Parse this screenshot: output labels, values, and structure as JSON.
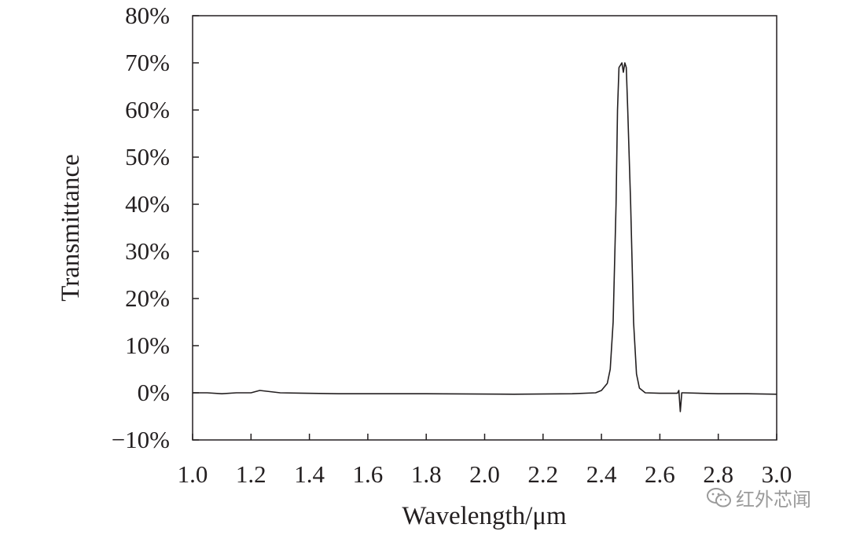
{
  "chart_data": {
    "type": "line",
    "xlabel": "Wavelength/μm",
    "ylabel": "Transmittance",
    "xlim": [
      1.0,
      3.0
    ],
    "ylim": [
      -10,
      80
    ],
    "x_ticks": [
      "1.0",
      "1.2",
      "1.4",
      "1.6",
      "1.8",
      "2.0",
      "2.2",
      "2.4",
      "2.6",
      "2.8",
      "3.0"
    ],
    "y_ticks": [
      "−10%",
      "0%",
      "10%",
      "20%",
      "30%",
      "40%",
      "50%",
      "60%",
      "70%",
      "80%"
    ],
    "grid": false,
    "legend": "none",
    "line_color": "#231f20",
    "series": [
      {
        "x": [
          1.0,
          1.05,
          1.1,
          1.15,
          1.2,
          1.23,
          1.3,
          1.5,
          1.8,
          2.1,
          2.3,
          2.38,
          2.4,
          2.42,
          2.43,
          2.44,
          2.45,
          2.455,
          2.46,
          2.47,
          2.475,
          2.48,
          2.485,
          2.49,
          2.5,
          2.51,
          2.52,
          2.53,
          2.55,
          2.6,
          2.66,
          2.665,
          2.67,
          2.675,
          2.68,
          2.8,
          2.9,
          3.0
        ],
        "y": [
          0.0,
          0.0,
          -0.2,
          0.0,
          0.0,
          0.5,
          0.0,
          -0.2,
          -0.2,
          -0.3,
          -0.2,
          0.0,
          0.5,
          2.0,
          5.0,
          15.0,
          40.0,
          60.0,
          69.0,
          70.0,
          68.0,
          70.0,
          69.0,
          60.0,
          40.0,
          15.0,
          4.0,
          1.0,
          0.0,
          -0.1,
          -0.1,
          0.5,
          -4.0,
          0.0,
          0.0,
          -0.2,
          -0.2,
          -0.3
        ]
      }
    ]
  },
  "watermark": {
    "text": "红外芯闻",
    "icon": "wechat-icon"
  }
}
